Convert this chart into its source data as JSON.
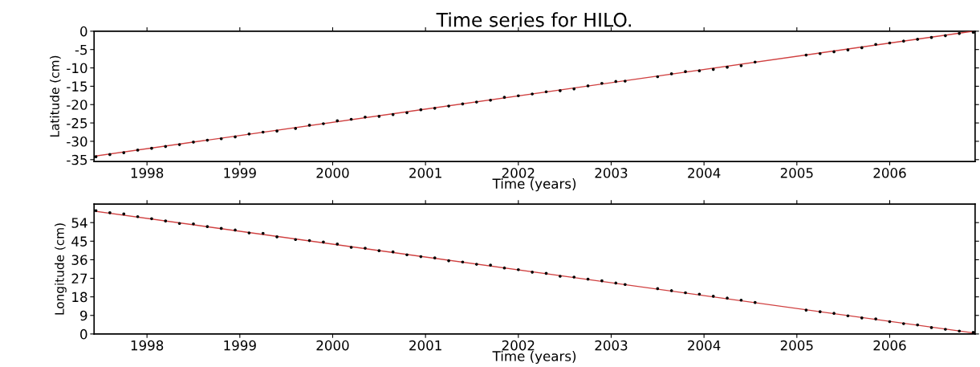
{
  "chart_data": [
    {
      "type": "scatter",
      "title": "Time series for HILO.",
      "xlabel": "Time (years)",
      "ylabel": "Latitude (cm)",
      "grid": false,
      "xlim": [
        1997.43,
        2006.92
      ],
      "xticks": [
        1998,
        1999,
        2000,
        2001,
        2002,
        2003,
        2004,
        2005,
        2006
      ],
      "ylim": [
        -35.5,
        0
      ],
      "yticks": [
        -35,
        -30,
        -25,
        -20,
        -15,
        -10,
        -5,
        0
      ],
      "series": [
        {
          "marker": "circle",
          "color": "#000000",
          "x": [
            1997.45,
            1997.6,
            1997.75,
            1997.9,
            1998.05,
            1998.2,
            1998.35,
            1998.5,
            1998.65,
            1998.8,
            1998.95,
            1999.1,
            1999.25,
            1999.4,
            1999.6,
            1999.75,
            1999.9,
            2000.05,
            2000.2,
            2000.35,
            2000.5,
            2000.65,
            2000.8,
            2000.95,
            2001.1,
            2001.25,
            2001.4,
            2001.55,
            2001.7,
            2001.85,
            2002.0,
            2002.15,
            2002.3,
            2002.45,
            2002.6,
            2002.75,
            2002.9,
            2003.05,
            2003.15,
            2003.5,
            2003.65,
            2003.8,
            2003.95,
            2004.1,
            2004.25,
            2004.4,
            2004.55,
            2005.1,
            2005.25,
            2005.4,
            2005.55,
            2005.7,
            2005.85,
            2006.0,
            2006.15,
            2006.3,
            2006.45,
            2006.6,
            2006.75,
            2006.9
          ],
          "values": [
            -34.2,
            -33.6,
            -33.1,
            -32.4,
            -31.9,
            -31.4,
            -30.9,
            -30.2,
            -29.7,
            -29.3,
            -28.8,
            -28.0,
            -27.5,
            -27.2,
            -26.5,
            -25.6,
            -25.2,
            -24.4,
            -24.0,
            -23.4,
            -23.2,
            -22.7,
            -22.2,
            -21.4,
            -21.0,
            -20.4,
            -19.8,
            -19.3,
            -18.8,
            -18.0,
            -17.6,
            -17.1,
            -16.5,
            -16.2,
            -15.7,
            -14.9,
            -14.2,
            -13.7,
            -13.6,
            -12.4,
            -11.6,
            -11.0,
            -10.8,
            -10.4,
            -9.8,
            -9.4,
            -8.4,
            -6.5,
            -6.1,
            -5.6,
            -5.1,
            -4.5,
            -3.6,
            -3.2,
            -2.7,
            -2.2,
            -1.7,
            -1.2,
            -0.6,
            -0.3
          ]
        },
        {
          "type": "line",
          "color": "#d04040",
          "line_style": "solid",
          "x": [
            1997.45,
            2006.9
          ],
          "values": [
            -34.0,
            0.0
          ]
        }
      ]
    },
    {
      "type": "scatter",
      "xlabel": "Time (years)",
      "ylabel": "Longitude (cm)",
      "grid": false,
      "xlim": [
        1997.43,
        2006.92
      ],
      "xticks": [
        1998,
        1999,
        2000,
        2001,
        2002,
        2003,
        2004,
        2005,
        2006
      ],
      "ylim": [
        0,
        63
      ],
      "yticks": [
        0,
        9,
        18,
        27,
        36,
        45,
        54
      ],
      "series": [
        {
          "marker": "circle",
          "color": "#000000",
          "x": [
            1997.45,
            1997.6,
            1997.75,
            1997.9,
            1998.05,
            1998.2,
            1998.35,
            1998.5,
            1998.65,
            1998.8,
            1998.95,
            1999.1,
            1999.25,
            1999.4,
            1999.6,
            1999.75,
            1999.9,
            2000.05,
            2000.2,
            2000.35,
            2000.5,
            2000.65,
            2000.8,
            2000.95,
            2001.1,
            2001.25,
            2001.4,
            2001.55,
            2001.7,
            2001.85,
            2002.0,
            2002.15,
            2002.3,
            2002.45,
            2002.6,
            2002.75,
            2002.9,
            2003.05,
            2003.15,
            2003.5,
            2003.65,
            2003.8,
            2003.95,
            2004.1,
            2004.25,
            2004.4,
            2004.55,
            2005.1,
            2005.25,
            2005.4,
            2005.55,
            2005.7,
            2005.85,
            2006.0,
            2006.15,
            2006.3,
            2006.45,
            2006.6,
            2006.75,
            2006.9
          ],
          "values": [
            59.8,
            58.8,
            58.2,
            56.9,
            55.9,
            54.8,
            53.6,
            53.4,
            52.1,
            51.2,
            50.4,
            49.0,
            48.8,
            47.1,
            45.8,
            45.3,
            44.6,
            43.6,
            42.0,
            41.6,
            40.4,
            39.8,
            38.4,
            37.5,
            36.9,
            35.5,
            34.9,
            33.8,
            33.4,
            32.0,
            31.2,
            30.0,
            29.4,
            28.0,
            27.6,
            26.6,
            25.8,
            24.7,
            24.0,
            22.0,
            21.0,
            20.0,
            19.3,
            18.3,
            17.4,
            16.4,
            15.3,
            11.6,
            10.8,
            10.0,
            8.8,
            7.8,
            7.3,
            6.0,
            5.0,
            4.4,
            3.1,
            2.3,
            1.4,
            0.8
          ]
        },
        {
          "type": "line",
          "color": "#d04040",
          "line_style": "solid",
          "x": [
            1997.45,
            2006.9
          ],
          "values": [
            59.5,
            0.5
          ]
        }
      ]
    }
  ]
}
